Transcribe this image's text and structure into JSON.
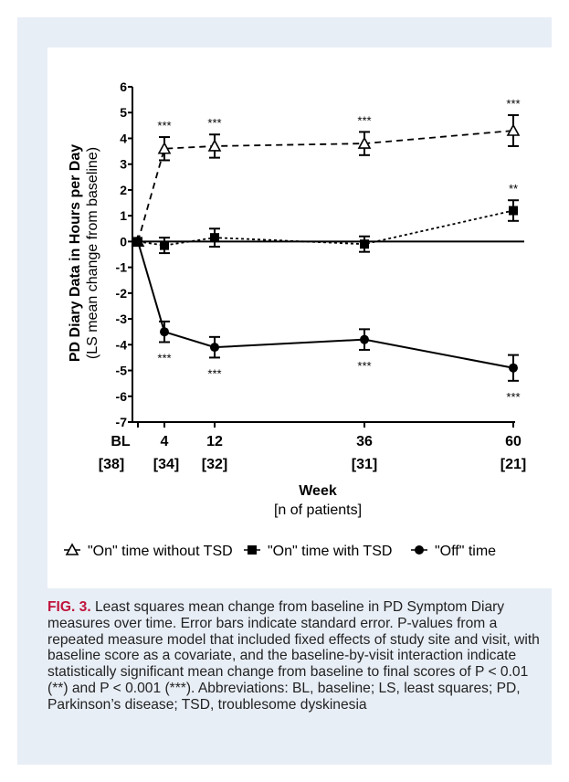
{
  "figure": {
    "label": "FIG. 3.",
    "caption": " Least squares mean change from baseline in PD Symptom Diary measures over time. Error bars indicate standard error. P-values from a repeated measure model that included fixed effects of study site and visit, with baseline score as a covariate, and the baseline-by-visit interaction indicate statistically significant mean change from baseline to final scores of P < 0.01 (**) and P < 0.001 (***). Abbreviations: BL, baseline; LS, least squares; PD, Parkinson’s disease; TSD, troublesome dyskinesia"
  },
  "chart_data": {
    "type": "line",
    "ylabel": "PD Diary Data in Hours per Day",
    "ylabel2": "(LS mean change from baseline)",
    "xlabel": "Week",
    "xlabel2": "[n of patients]",
    "ylim": [
      -7,
      6
    ],
    "yticks": [
      6,
      5,
      4,
      3,
      2,
      1,
      0,
      -1,
      -2,
      -3,
      -4,
      -5,
      -6,
      -7
    ],
    "x": [
      0,
      4,
      12,
      36,
      60
    ],
    "xtick_labels": [
      "BL",
      "4",
      "12",
      "36",
      "60"
    ],
    "n_labels": [
      "[38]",
      "[34]",
      "[32]",
      "[31]",
      "[21]"
    ],
    "reference_line": 0,
    "series": [
      {
        "name": "\"On\" time without TSD",
        "marker": "open-triangle",
        "linestyle": "dashed",
        "values": [
          0,
          3.6,
          3.7,
          3.8,
          4.3
        ],
        "se": [
          0,
          0.45,
          0.45,
          0.45,
          0.6
        ],
        "sig": [
          "",
          "***",
          "***",
          "***",
          "***"
        ],
        "sig_pos": [
          "above",
          "above",
          "above",
          "above",
          "above"
        ]
      },
      {
        "name": "\"On\" time with TSD",
        "marker": "filled-square",
        "linestyle": "dotted",
        "values": [
          0,
          -0.15,
          0.15,
          -0.1,
          1.2
        ],
        "se": [
          0,
          0.3,
          0.35,
          0.3,
          0.4
        ],
        "sig": [
          "",
          "",
          "",
          "",
          "**"
        ],
        "sig_pos": [
          "above",
          "above",
          "above",
          "above",
          "above"
        ]
      },
      {
        "name": "\"Off\" time",
        "marker": "filled-circle",
        "linestyle": "solid",
        "values": [
          0,
          -3.5,
          -4.1,
          -3.8,
          -4.9
        ],
        "se": [
          0,
          0.4,
          0.4,
          0.4,
          0.5
        ],
        "sig": [
          "",
          "***",
          "***",
          "***",
          "***"
        ],
        "sig_pos": [
          "below",
          "below",
          "below",
          "below",
          "below"
        ]
      }
    ],
    "legend_position": "bottom"
  }
}
